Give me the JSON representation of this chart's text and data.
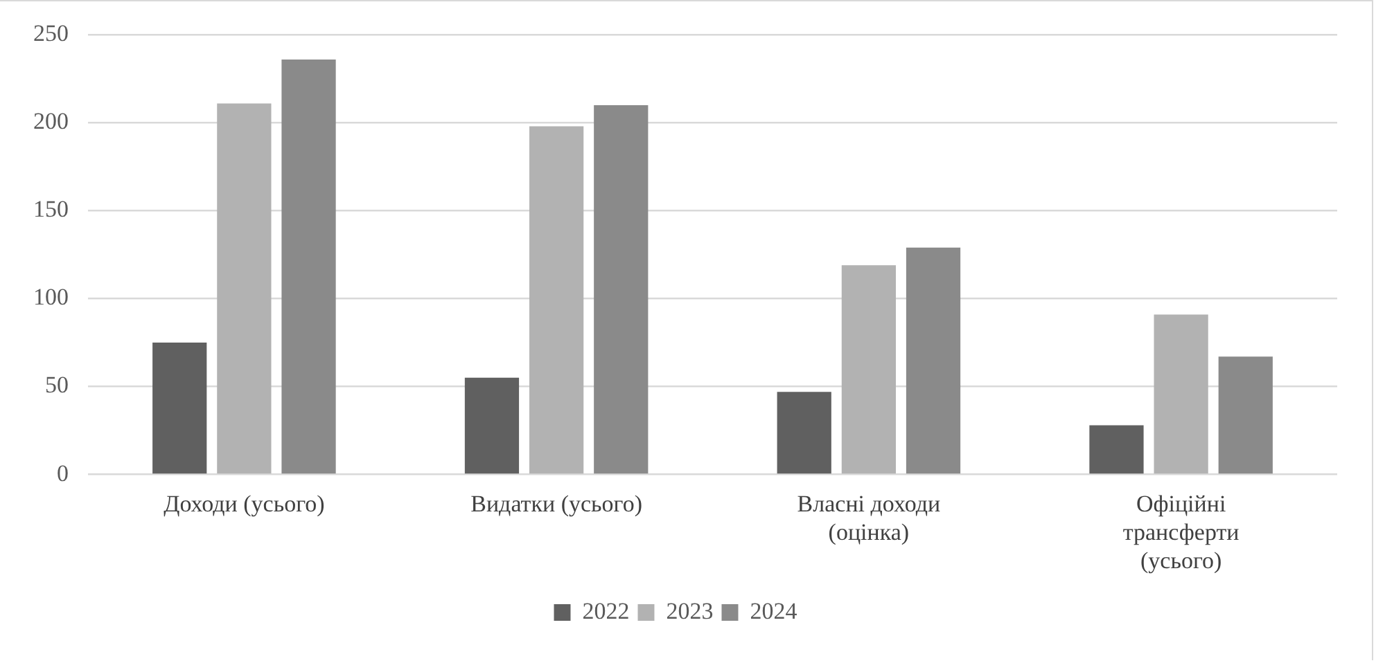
{
  "chart_data": {
    "type": "bar",
    "categories": [
      "Доходи (усього)",
      "Видатки (усього)",
      "Власні доходи (оцінка)",
      "Офіційні трансферти (усього)"
    ],
    "series": [
      {
        "name": "2022",
        "color": "#606060",
        "values": [
          75,
          55,
          47,
          28
        ]
      },
      {
        "name": "2023",
        "color": "#b2b2b2",
        "values": [
          211,
          198,
          119,
          91
        ]
      },
      {
        "name": "2024",
        "color": "#8a8a8a",
        "values": [
          236,
          210,
          129,
          67
        ]
      }
    ],
    "ylim": [
      0,
      250
    ],
    "yticks": [
      0,
      50,
      100,
      150,
      200,
      250
    ],
    "grid": "y",
    "legend": "bottom"
  }
}
